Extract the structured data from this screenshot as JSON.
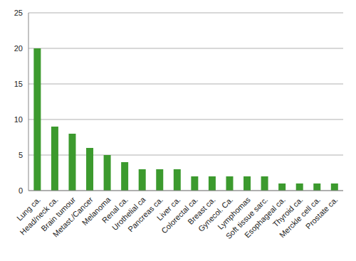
{
  "chart_data": {
    "type": "bar",
    "categories": [
      "Lung ca.",
      "Head/neck ca.",
      "Brain tumour",
      "Metast./Cancer",
      "Melanoma",
      "Renal ca.",
      "Urothelial ca",
      "Pancreas ca.",
      "Liver ca.",
      "Colorectal ca.",
      "Breast ca.",
      "Gynecol. Ca.",
      "Lymphomas",
      "Soft tissue sarc.",
      "Esophageal ca.",
      "Thyroid ca.",
      "Merckle cell ca.",
      "Prostate ca."
    ],
    "values": [
      20,
      9,
      8,
      6,
      5,
      4,
      3,
      3,
      3,
      2,
      2,
      2,
      2,
      2,
      1,
      1,
      1,
      1
    ],
    "color": "#3c9a2e",
    "ylim": [
      0,
      25
    ],
    "yticks": [
      0,
      5,
      10,
      15,
      20,
      25
    ],
    "grid": true
  }
}
